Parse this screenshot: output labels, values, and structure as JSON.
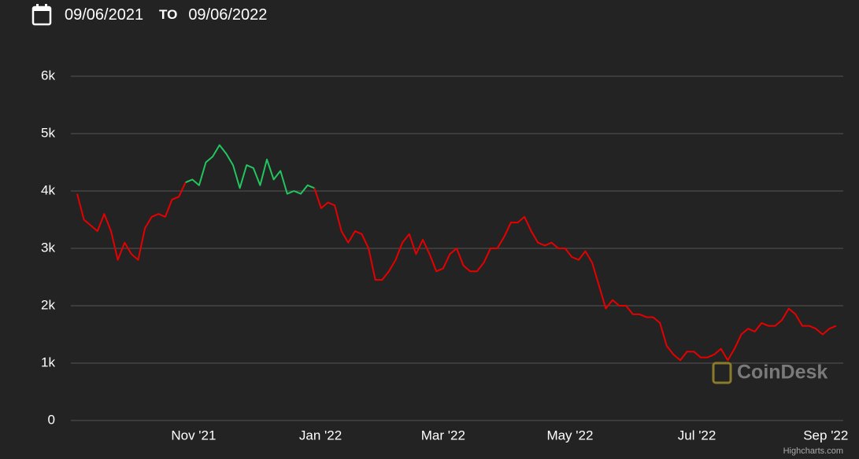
{
  "header": {
    "from": "09/06/2021",
    "separator": "TO",
    "to": "09/06/2022"
  },
  "chart_data": {
    "type": "line",
    "values": [
      3950,
      3500,
      3400,
      3300,
      3600,
      3300,
      2800,
      3100,
      2900,
      2800,
      3350,
      3550,
      3600,
      3550,
      3850,
      3900,
      4150,
      4200,
      4100,
      4500,
      4600,
      4800,
      4650,
      4450,
      4050,
      4450,
      4400,
      4100,
      4550,
      4200,
      4350,
      3950,
      4000,
      3950,
      4100,
      4050,
      3700,
      3800,
      3750,
      3300,
      3100,
      3300,
      3250,
      3000,
      2450,
      2450,
      2600,
      2800,
      3100,
      3250,
      2900,
      3150,
      2900,
      2600,
      2650,
      2900,
      3000,
      2700,
      2600,
      2600,
      2750,
      3000,
      3000,
      3200,
      3450,
      3450,
      3550,
      3300,
      3100,
      3050,
      3100,
      3000,
      3000,
      2850,
      2800,
      2950,
      2750,
      2350,
      1950,
      2100,
      2000,
      2000,
      1850,
      1850,
      1800,
      1800,
      1700,
      1300,
      1150,
      1050,
      1200,
      1200,
      1100,
      1100,
      1150,
      1250,
      1050,
      1250,
      1500,
      1600,
      1550,
      1700,
      1650,
      1650,
      1750,
      1950,
      1850,
      1650,
      1650,
      1600,
      1500,
      1600,
      1650
    ],
    "color": "#e60000",
    "up_color": "#22c55e",
    "ylim": [
      0,
      6000
    ],
    "yticks": [
      0,
      {
        "value": 1000,
        "label": "1k"
      },
      {
        "value": 2000,
        "label": "2k"
      },
      {
        "value": 3000,
        "label": "3k"
      },
      {
        "value": 4000,
        "label": "4k"
      },
      {
        "value": 5000,
        "label": "5k"
      },
      {
        "value": 6000,
        "label": "6k"
      }
    ],
    "xticks": [
      {
        "value": "2021-11",
        "label": "Nov '21"
      },
      {
        "value": "2022-01",
        "label": "Jan '22"
      },
      {
        "value": "2022-03",
        "label": "Mar '22"
      },
      {
        "value": "2022-05",
        "label": "May '22"
      },
      {
        "value": "2022-07",
        "label": "Jul '22"
      },
      {
        "value": "2022-09",
        "label": "Sep '22"
      }
    ],
    "grid": true,
    "watermark": "CoinDesk",
    "credits": "Highcharts.com"
  }
}
